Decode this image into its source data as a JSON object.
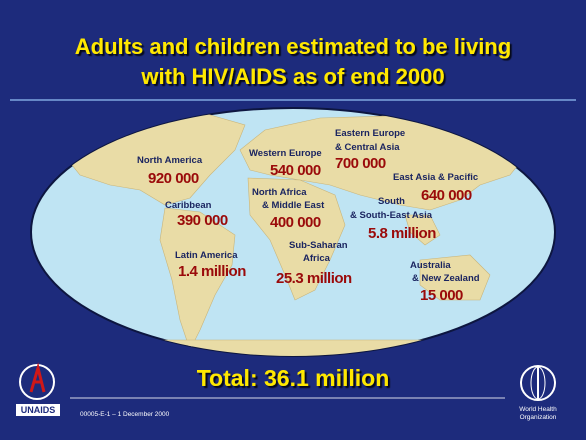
{
  "header": {
    "title_lines": [
      "Adults and children estimated to be living",
      "with HIV/AIDS as of end 2000"
    ]
  },
  "regions": [
    {
      "name": [
        "North America"
      ],
      "value": "920 000"
    },
    {
      "name": [
        "Caribbean"
      ],
      "value": "390 000"
    },
    {
      "name": [
        "Latin America"
      ],
      "value": "1.4 million"
    },
    {
      "name": [
        "Western Europe"
      ],
      "value": "540 000"
    },
    {
      "name": [
        "Eastern Europe",
        "& Central Asia"
      ],
      "value": "700 000"
    },
    {
      "name": [
        "North Africa",
        "& Middle East"
      ],
      "value": "400 000"
    },
    {
      "name": [
        "Sub-Saharan",
        "Africa"
      ],
      "value": "25.3 million"
    },
    {
      "name": [
        "South",
        "& South-East Asia"
      ],
      "value": "5.8 million"
    },
    {
      "name": [
        "East Asia & Pacific"
      ],
      "value": "640 000"
    },
    {
      "name": [
        "Australia",
        "& New Zealand"
      ],
      "value": "15 000"
    }
  ],
  "total": "Total: 36.1 million",
  "logos": {
    "left": "UNAIDS",
    "right": [
      "World Health",
      "Organization"
    ]
  },
  "footer": "00005-E-1 – 1 December 2000"
}
